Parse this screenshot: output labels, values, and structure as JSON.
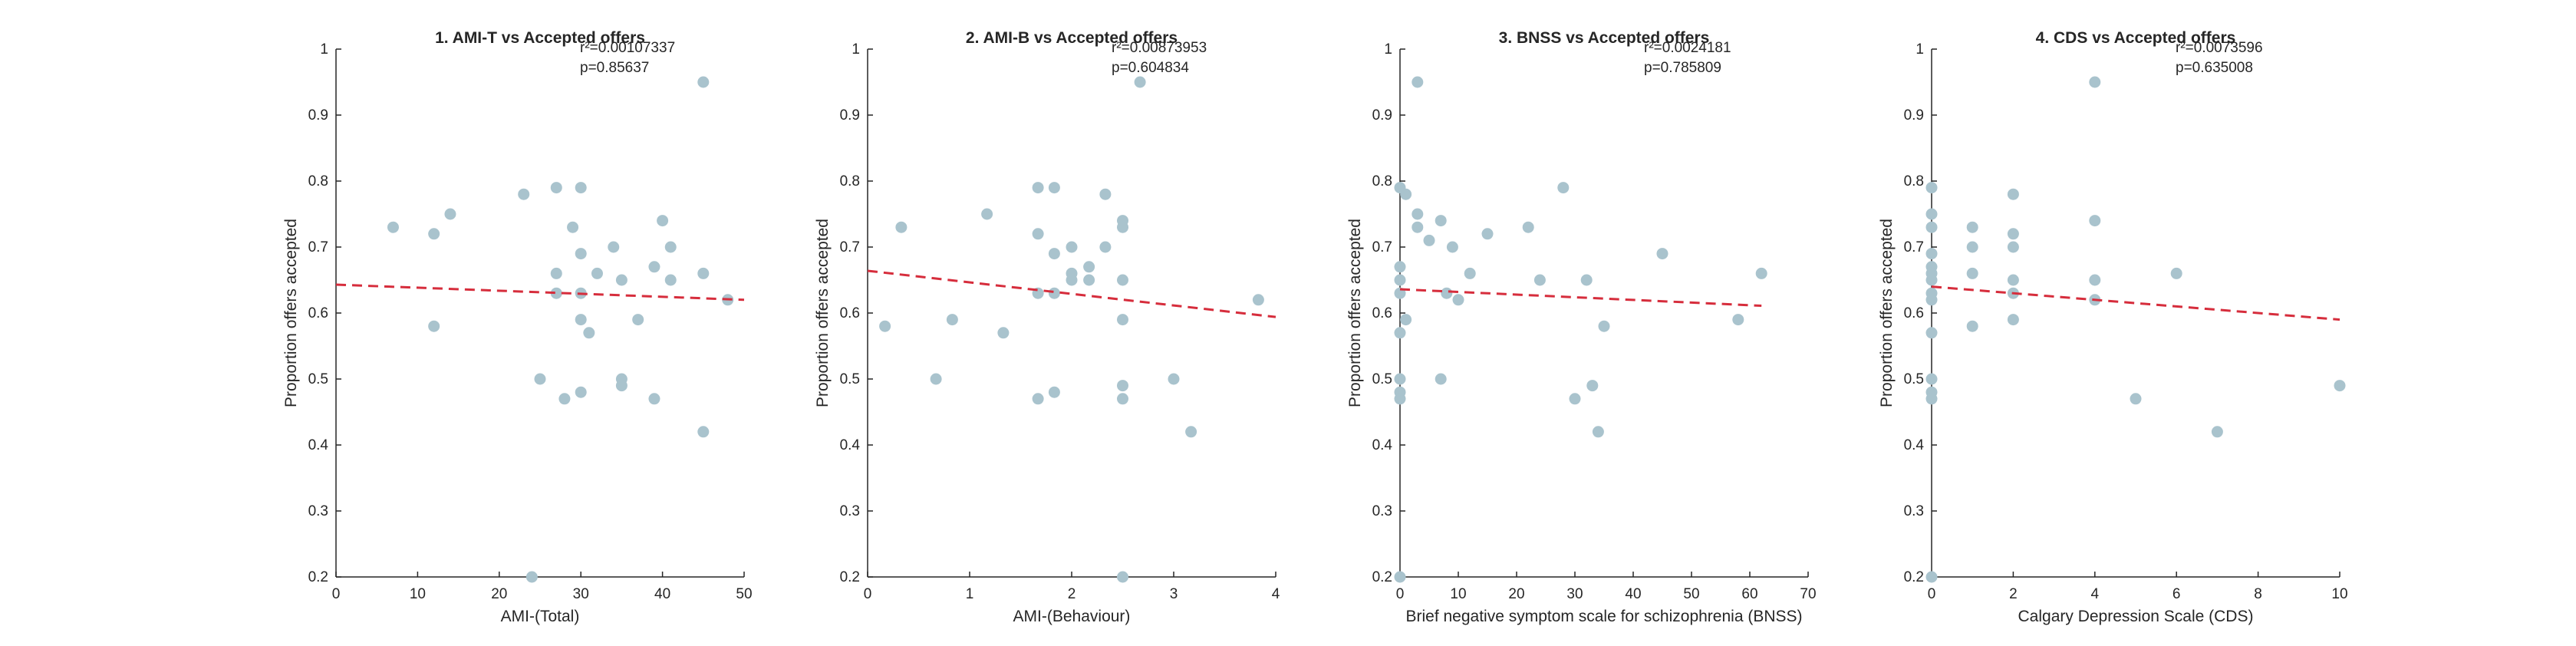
{
  "colors": {
    "point": "#a9c3cd",
    "fit": "#d62d3c",
    "axis": "#262626"
  },
  "chart_data": [
    {
      "type": "scatter",
      "title": "1. AMI-T vs Accepted offers",
      "xlabel": "AMI-(Total)",
      "ylabel": "Proportion offers accepted",
      "xlim": [
        0,
        50
      ],
      "ylim": [
        0.2,
        1
      ],
      "xticks": [
        0,
        10,
        20,
        30,
        40,
        50
      ],
      "xtick_labels": [
        "0",
        "10",
        "20",
        "30",
        "40",
        "50"
      ],
      "yticks": [
        0.2,
        0.3,
        0.4,
        0.5,
        0.6,
        0.7,
        0.8,
        0.9,
        1
      ],
      "ytick_labels": [
        "0.2",
        "0.3",
        "0.4",
        "0.5",
        "0.6",
        "0.7",
        "0.8",
        "0.9",
        "1"
      ],
      "annotation": [
        "r²=0.00107337",
        "p=0.85637"
      ],
      "fit_line": {
        "x": [
          0,
          50
        ],
        "y": [
          0.643,
          0.62
        ]
      },
      "points": [
        [
          7,
          0.73
        ],
        [
          12,
          0.72
        ],
        [
          12,
          0.58
        ],
        [
          14,
          0.75
        ],
        [
          23,
          0.78
        ],
        [
          24,
          0.2
        ],
        [
          25,
          0.5
        ],
        [
          27,
          0.79
        ],
        [
          27,
          0.66
        ],
        [
          27,
          0.63
        ],
        [
          28,
          0.47
        ],
        [
          29,
          0.73
        ],
        [
          30,
          0.79
        ],
        [
          30,
          0.69
        ],
        [
          30,
          0.63
        ],
        [
          30,
          0.59
        ],
        [
          30,
          0.48
        ],
        [
          31,
          0.57
        ],
        [
          32,
          0.66
        ],
        [
          34,
          0.7
        ],
        [
          35,
          0.65
        ],
        [
          35,
          0.5
        ],
        [
          35,
          0.49
        ],
        [
          37,
          0.59
        ],
        [
          39,
          0.67
        ],
        [
          39,
          0.47
        ],
        [
          40,
          0.74
        ],
        [
          41,
          0.7
        ],
        [
          41,
          0.65
        ],
        [
          45,
          0.95
        ],
        [
          45,
          0.66
        ],
        [
          45,
          0.42
        ],
        [
          48,
          0.62
        ]
      ]
    },
    {
      "type": "scatter",
      "title": "2. AMI-B vs Accepted offers",
      "xlabel": "AMI-(Behaviour)",
      "ylabel": "Proportion offers accepted",
      "xlim": [
        0,
        4
      ],
      "ylim": [
        0.2,
        1
      ],
      "xticks": [
        0,
        1,
        2,
        3,
        4
      ],
      "xtick_labels": [
        "0",
        "1",
        "2",
        "3",
        "4"
      ],
      "yticks": [
        0.2,
        0.3,
        0.4,
        0.5,
        0.6,
        0.7,
        0.8,
        0.9,
        1
      ],
      "ytick_labels": [
        "0.2",
        "0.3",
        "0.4",
        "0.5",
        "0.6",
        "0.7",
        "0.8",
        "0.9",
        "1"
      ],
      "annotation": [
        "r²=0.00873953",
        "p=0.604834"
      ],
      "fit_line": {
        "x": [
          0,
          4
        ],
        "y": [
          0.664,
          0.594
        ]
      },
      "points": [
        [
          0.17,
          0.58
        ],
        [
          0.33,
          0.73
        ],
        [
          0.67,
          0.5
        ],
        [
          0.83,
          0.59
        ],
        [
          1.17,
          0.75
        ],
        [
          1.33,
          0.57
        ],
        [
          1.67,
          0.79
        ],
        [
          1.67,
          0.72
        ],
        [
          1.67,
          0.63
        ],
        [
          1.67,
          0.47
        ],
        [
          1.83,
          0.79
        ],
        [
          1.83,
          0.69
        ],
        [
          1.83,
          0.63
        ],
        [
          1.83,
          0.48
        ],
        [
          2.0,
          0.7
        ],
        [
          2.0,
          0.66
        ],
        [
          2.0,
          0.65
        ],
        [
          2.17,
          0.67
        ],
        [
          2.17,
          0.65
        ],
        [
          2.33,
          0.78
        ],
        [
          2.33,
          0.7
        ],
        [
          2.5,
          0.74
        ],
        [
          2.5,
          0.73
        ],
        [
          2.5,
          0.65
        ],
        [
          2.5,
          0.59
        ],
        [
          2.5,
          0.49
        ],
        [
          2.5,
          0.47
        ],
        [
          2.5,
          0.2
        ],
        [
          2.67,
          0.95
        ],
        [
          3.0,
          0.5
        ],
        [
          3.17,
          0.42
        ],
        [
          3.83,
          0.62
        ]
      ]
    },
    {
      "type": "scatter",
      "title": "3. BNSS vs Accepted offers",
      "xlabel": "Brief negative symptom scale for schizophrenia (BNSS)",
      "ylabel": "Proportion offers accepted",
      "xlim": [
        0,
        70
      ],
      "ylim": [
        0.2,
        1
      ],
      "xticks": [
        0,
        10,
        20,
        30,
        40,
        50,
        60,
        70
      ],
      "xtick_labels": [
        "0",
        "10",
        "20",
        "30",
        "40",
        "50",
        "60",
        "70"
      ],
      "yticks": [
        0.2,
        0.3,
        0.4,
        0.5,
        0.6,
        0.7,
        0.8,
        0.9,
        1
      ],
      "ytick_labels": [
        "0.2",
        "0.3",
        "0.4",
        "0.5",
        "0.6",
        "0.7",
        "0.8",
        "0.9",
        "1"
      ],
      "annotation": [
        "r²=0.0024181",
        "p=0.785809"
      ],
      "fit_line": {
        "x": [
          0,
          62
        ],
        "y": [
          0.636,
          0.611
        ]
      },
      "points": [
        [
          0,
          0.79
        ],
        [
          0,
          0.67
        ],
        [
          0,
          0.65
        ],
        [
          0,
          0.63
        ],
        [
          0,
          0.57
        ],
        [
          0,
          0.5
        ],
        [
          0,
          0.48
        ],
        [
          0,
          0.47
        ],
        [
          0,
          0.2
        ],
        [
          1,
          0.78
        ],
        [
          1,
          0.59
        ],
        [
          3,
          0.95
        ],
        [
          3,
          0.75
        ],
        [
          3,
          0.73
        ],
        [
          5,
          0.71
        ],
        [
          7,
          0.74
        ],
        [
          7,
          0.5
        ],
        [
          8,
          0.63
        ],
        [
          9,
          0.7
        ],
        [
          10,
          0.62
        ],
        [
          12,
          0.66
        ],
        [
          15,
          0.72
        ],
        [
          22,
          0.73
        ],
        [
          24,
          0.65
        ],
        [
          28,
          0.79
        ],
        [
          30,
          0.47
        ],
        [
          32,
          0.65
        ],
        [
          33,
          0.49
        ],
        [
          34,
          0.42
        ],
        [
          35,
          0.58
        ],
        [
          45,
          0.69
        ],
        [
          58,
          0.59
        ],
        [
          62,
          0.66
        ]
      ]
    },
    {
      "type": "scatter",
      "title": "4. CDS vs Accepted offers",
      "xlabel": "Calgary Depression Scale (CDS)",
      "ylabel": "Proportion offers accepted",
      "xlim": [
        0,
        10
      ],
      "ylim": [
        0.2,
        1
      ],
      "xticks": [
        0,
        2,
        4,
        6,
        8,
        10
      ],
      "xtick_labels": [
        "0",
        "2",
        "4",
        "6",
        "8",
        "10"
      ],
      "yticks": [
        0.2,
        0.3,
        0.4,
        0.5,
        0.6,
        0.7,
        0.8,
        0.9,
        1
      ],
      "ytick_labels": [
        "0.2",
        "0.3",
        "0.4",
        "0.5",
        "0.6",
        "0.7",
        "0.8",
        "0.9",
        "1"
      ],
      "annotation": [
        "r²=0.0073596",
        "p=0.635008"
      ],
      "fit_line": {
        "x": [
          0,
          10
        ],
        "y": [
          0.64,
          0.59
        ]
      },
      "points": [
        [
          0,
          0.79
        ],
        [
          0,
          0.75
        ],
        [
          0,
          0.73
        ],
        [
          0,
          0.69
        ],
        [
          0,
          0.67
        ],
        [
          0,
          0.66
        ],
        [
          0,
          0.65
        ],
        [
          0,
          0.63
        ],
        [
          0,
          0.62
        ],
        [
          0,
          0.57
        ],
        [
          0,
          0.5
        ],
        [
          0,
          0.48
        ],
        [
          0,
          0.47
        ],
        [
          0,
          0.2
        ],
        [
          1,
          0.73
        ],
        [
          1,
          0.7
        ],
        [
          1,
          0.66
        ],
        [
          1,
          0.58
        ],
        [
          2,
          0.78
        ],
        [
          2,
          0.72
        ],
        [
          2,
          0.7
        ],
        [
          2,
          0.65
        ],
        [
          2,
          0.63
        ],
        [
          2,
          0.59
        ],
        [
          4,
          0.95
        ],
        [
          4,
          0.74
        ],
        [
          4,
          0.65
        ],
        [
          4,
          0.62
        ],
        [
          5,
          0.47
        ],
        [
          6,
          0.66
        ],
        [
          7,
          0.42
        ],
        [
          10,
          0.49
        ]
      ]
    }
  ]
}
